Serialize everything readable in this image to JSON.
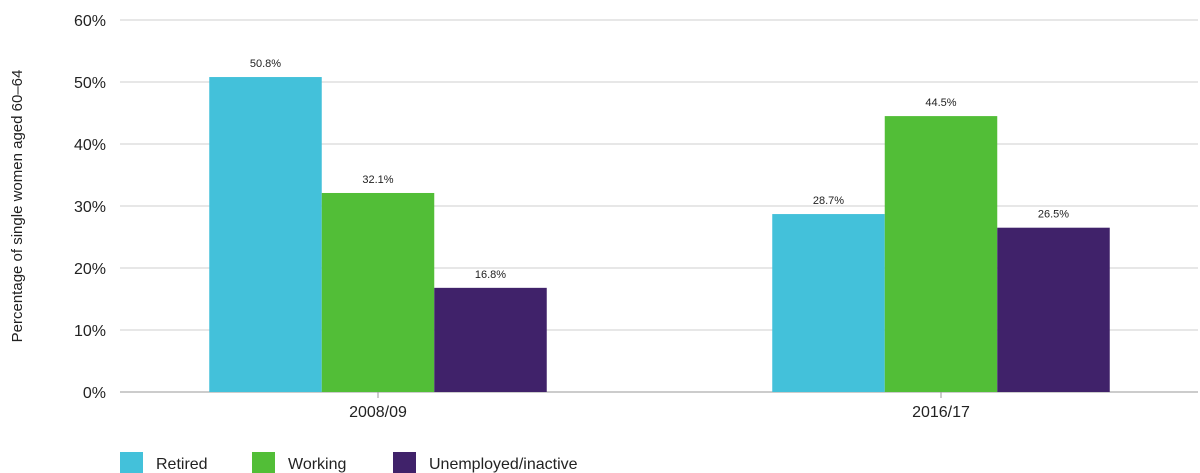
{
  "chart_data": {
    "type": "bar",
    "title": "",
    "xlabel": "",
    "ylabel": "Percentage of single women aged 60–64",
    "categories": [
      "2008/09",
      "2016/17"
    ],
    "series": [
      {
        "name": "Retired",
        "values": [
          50.8,
          28.7
        ],
        "labels": [
          "50.8%",
          "28.7%"
        ],
        "color": "#43c1da"
      },
      {
        "name": "Working",
        "values": [
          32.1,
          44.5
        ],
        "labels": [
          "32.1%",
          "44.5%"
        ],
        "color": "#52be37"
      },
      {
        "name": "Unemployed/inactive",
        "values": [
          16.8,
          26.5
        ],
        "labels": [
          "16.8%",
          "26.5%"
        ],
        "color": "#40226a"
      }
    ],
    "ylim": [
      0,
      60
    ],
    "yticks": [
      0,
      10,
      20,
      30,
      40,
      50,
      60
    ],
    "ytick_labels": [
      "0%",
      "10%",
      "20%",
      "30%",
      "40%",
      "50%",
      "60%"
    ],
    "grid": true,
    "legend": "bottom-left"
  }
}
